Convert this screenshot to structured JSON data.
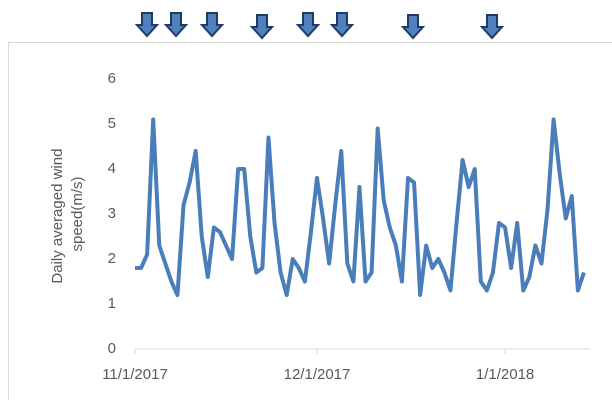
{
  "chart_data": {
    "type": "line",
    "y_label_lines": [
      "Daily averaged wind",
      "speed(m/s)"
    ],
    "x": [
      "11/1/2017",
      "11/2/2017",
      "11/3/2017",
      "11/4/2017",
      "11/5/2017",
      "11/6/2017",
      "11/7/2017",
      "11/8/2017",
      "11/9/2017",
      "11/10/2017",
      "11/11/2017",
      "11/12/2017",
      "11/13/2017",
      "11/14/2017",
      "11/15/2017",
      "11/16/2017",
      "11/17/2017",
      "11/18/2017",
      "11/19/2017",
      "11/20/2017",
      "11/21/2017",
      "11/22/2017",
      "11/23/2017",
      "11/24/2017",
      "11/25/2017",
      "11/26/2017",
      "11/27/2017",
      "11/28/2017",
      "11/29/2017",
      "11/30/2017",
      "12/1/2017",
      "12/2/2017",
      "12/3/2017",
      "12/4/2017",
      "12/5/2017",
      "12/6/2017",
      "12/7/2017",
      "12/8/2017",
      "12/9/2017",
      "12/10/2017",
      "12/11/2017",
      "12/12/2017",
      "12/13/2017",
      "12/14/2017",
      "12/15/2017",
      "12/16/2017",
      "12/17/2017",
      "12/18/2017",
      "12/19/2017",
      "12/20/2017",
      "12/21/2017",
      "12/22/2017",
      "12/23/2017",
      "12/24/2017",
      "12/25/2017",
      "12/26/2017",
      "12/27/2017",
      "12/28/2017",
      "12/29/2017",
      "12/30/2017",
      "12/31/2017",
      "1/1/2018",
      "1/2/2018",
      "1/3/2018",
      "1/4/2018",
      "1/5/2018",
      "1/6/2018",
      "1/7/2018",
      "1/8/2018",
      "1/9/2018",
      "1/10/2018",
      "1/11/2018",
      "1/12/2018",
      "1/13/2018",
      "1/14/2018"
    ],
    "series": [
      {
        "name": "Daily averaged wind speed",
        "color": "#4a7ebb",
        "values": [
          1.8,
          1.8,
          2.1,
          5.1,
          2.3,
          1.9,
          1.5,
          1.2,
          3.2,
          3.7,
          4.4,
          2.5,
          1.6,
          2.7,
          2.6,
          2.3,
          2.0,
          4.0,
          4.0,
          2.5,
          1.7,
          1.8,
          4.7,
          2.8,
          1.7,
          1.2,
          2.0,
          1.8,
          1.5,
          2.6,
          3.8,
          2.9,
          1.9,
          3.2,
          4.4,
          1.9,
          1.5,
          3.6,
          1.5,
          1.7,
          4.9,
          3.3,
          2.7,
          2.3,
          1.5,
          3.8,
          3.7,
          1.2,
          2.3,
          1.8,
          2.0,
          1.7,
          1.3,
          2.8,
          4.2,
          3.6,
          4.0,
          1.5,
          1.3,
          1.7,
          2.8,
          2.7,
          1.8,
          2.8,
          1.3,
          1.6,
          2.3,
          1.9,
          3.1,
          5.1,
          3.9,
          2.9,
          3.4,
          1.3,
          1.7
        ]
      }
    ],
    "xlim": [
      "11/1/2017",
      "1/15/2018"
    ],
    "xticks": [
      "11/1/2017",
      "12/1/2017",
      "1/1/2018"
    ],
    "ylim": [
      0,
      6
    ],
    "yticks": [
      0,
      1,
      2,
      3,
      4,
      5,
      6
    ],
    "grid": false
  }
}
